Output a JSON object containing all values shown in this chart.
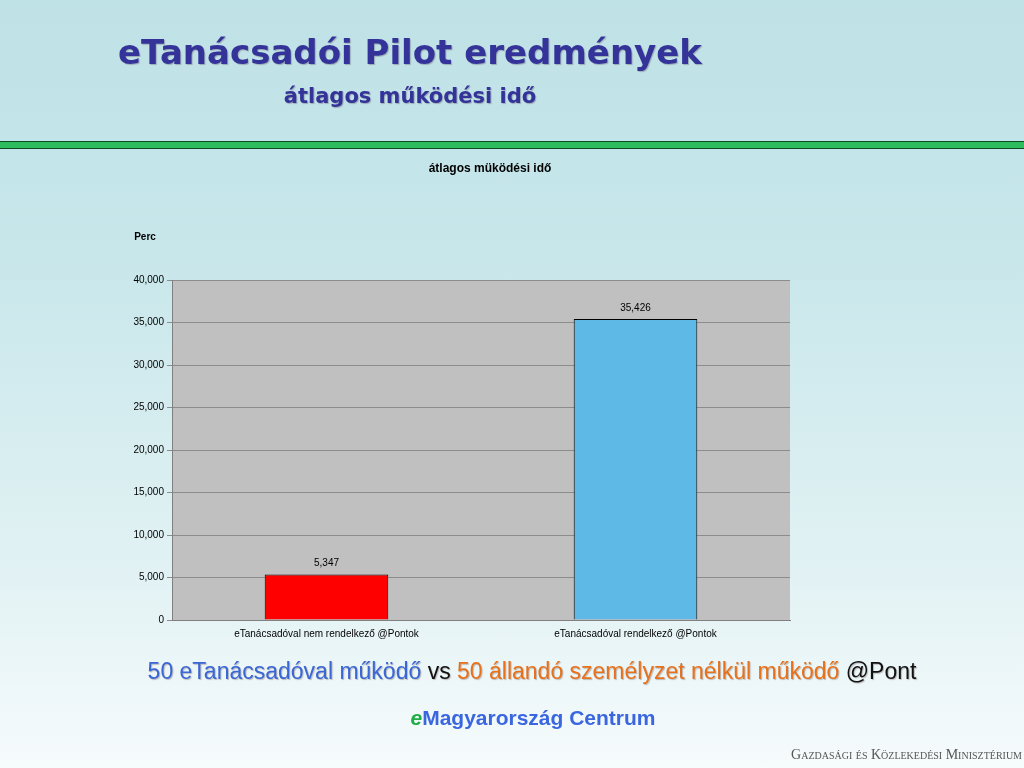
{
  "chart_data": {
    "type": "bar",
    "title": "eTanácsadói Pilot eredmények",
    "subtitle": "átlagos működési idő",
    "ylabel": "Perc",
    "categories": [
      "eTanácsadóval nem rendelkező @Pontok",
      "eTanácsadóval rendelkező @Pontok"
    ],
    "values": [
      5347,
      35426
    ],
    "colors": [
      "#ff0000",
      "#5fb9e6"
    ],
    "value_labels": [
      "5,347",
      "35,426"
    ],
    "ylim": [
      0,
      40000
    ],
    "yticks": [
      0,
      {
        "value": 5000,
        "label": "5,000"
      },
      {
        "value": 10000,
        "label": "10,000"
      },
      {
        "value": 15000,
        "label": "15,000"
      },
      {
        "value": 20000,
        "label": "20,000"
      },
      {
        "value": 25000,
        "label": "25,000"
      },
      {
        "value": 30000,
        "label": "30,000"
      },
      {
        "value": 35000,
        "label": "35,000"
      },
      {
        "value": 40000,
        "label": "40,000"
      }
    ],
    "grid": "y",
    "annotations": [
      "átlagos müködési idő",
      "50 eTanácsadóval működő",
      "vs",
      "50 állandó személyzet nélkül működő",
      "@Pont",
      "eMagyarország Centrum",
      "Gazdasági és Közlekedési Minisztérium"
    ]
  }
}
